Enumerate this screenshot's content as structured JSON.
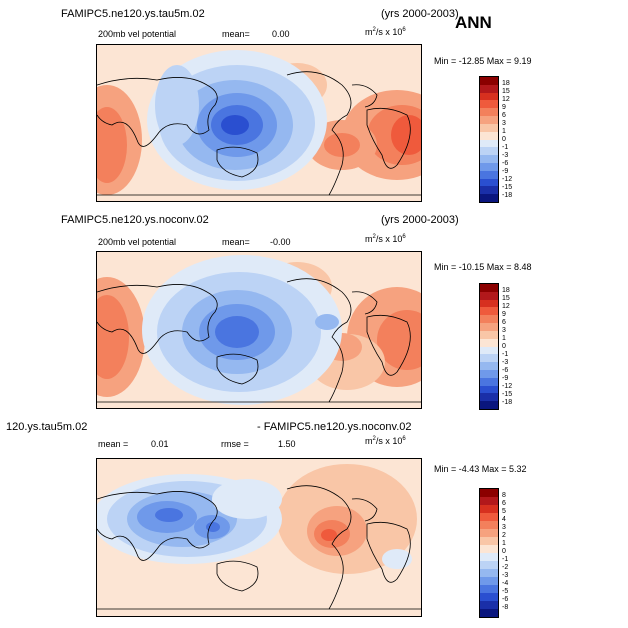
{
  "season": "ANN",
  "panels": [
    {
      "title_left": "FAMIPC5.ne120.ys.tau5m.02",
      "title_right": "(yrs 2000-2003)",
      "field_label": "200mb vel potential",
      "stat_label": "mean=",
      "stat_value": "0.00",
      "units": "m",
      "units_exp": "2",
      "units_mid": "/s x 10",
      "units_exp2": "6",
      "minmax": "Min = -12.85 Max =   9.19",
      "levels": [
        "18",
        "15",
        "12",
        "9",
        "6",
        "3",
        "1",
        "0",
        "-1",
        "-3",
        "-6",
        "-9",
        "-12",
        "-15",
        "-18"
      ]
    },
    {
      "title_left": "FAMIPC5.ne120.ys.noconv.02",
      "title_right": "(yrs 2000-2003)",
      "field_label": "200mb vel potential",
      "stat_label": "mean=",
      "stat_value": "-0.00",
      "units": "m",
      "units_exp": "2",
      "units_mid": "/s x 10",
      "units_exp2": "6",
      "minmax": "Min = -10.15 Max =   8.48",
      "levels": [
        "18",
        "15",
        "12",
        "9",
        "6",
        "3",
        "1",
        "0",
        "-1",
        "-3",
        "-6",
        "-9",
        "-12",
        "-15",
        "-18"
      ]
    },
    {
      "title_left": "120.ys.tau5m.02",
      "title_right": "- FAMIPC5.ne120.ys.noconv.02",
      "stat_label": "mean =",
      "stat_value": "0.01",
      "rmse_label": "rmse =",
      "rmse_value": "1.50",
      "units": "m",
      "units_exp": "2",
      "units_mid": "/s x 10",
      "units_exp2": "6",
      "minmax": "Min = -4.43 Max =   5.32",
      "levels": [
        "8",
        "6",
        "5",
        "4",
        "3",
        "2",
        "1",
        "0",
        "-1",
        "-2",
        "-3",
        "-4",
        "-5",
        "-6",
        "-8"
      ]
    }
  ],
  "colorbar_colors": [
    "#8b0000",
    "#b2181b",
    "#d7301f",
    "#ef5a3c",
    "#f3805c",
    "#f6a27f",
    "#f9c6a7",
    "#fce5d4",
    "#dfeaf8",
    "#bcd3f5",
    "#95b8f0",
    "#6f99ea",
    "#4a75e0",
    "#2a4fd0",
    "#1a2fa8",
    "#0a167e"
  ]
}
